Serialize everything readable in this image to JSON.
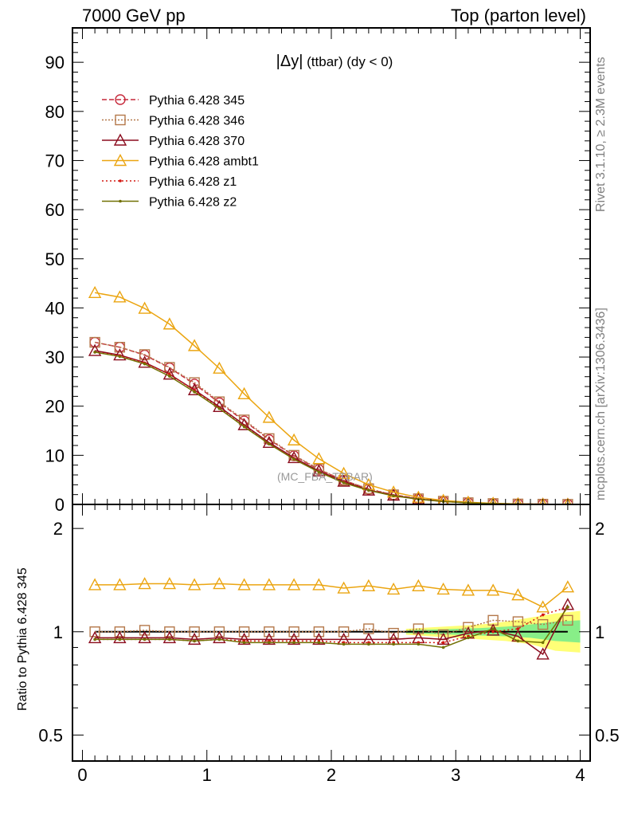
{
  "header": {
    "left": "7000 GeV pp",
    "right": "Top (parton level)"
  },
  "side_labels": {
    "rivet": "Rivet 3.1.10, ≥ 2.3M events",
    "mcplots": "mcplots.cern.ch [arXiv:1306.3436]"
  },
  "title": {
    "main": "|Δy|",
    "sub": " (ttbar) (dy < 0)"
  },
  "watermark": "(MC_FBA_TTBAR)",
  "chart_data": {
    "type": "line",
    "x": [
      0.1,
      0.3,
      0.5,
      0.7,
      0.9,
      1.1,
      1.3,
      1.5,
      1.7,
      1.9,
      2.1,
      2.3,
      2.5,
      2.7,
      2.9,
      3.1,
      3.3,
      3.5,
      3.7,
      3.9
    ],
    "xlim": [
      -0.08,
      4.08
    ],
    "xticks": [
      "0",
      "1",
      "2",
      "3",
      "4"
    ],
    "main_panel": {
      "ylim": [
        0,
        97
      ],
      "yticks": [
        "0",
        "10",
        "20",
        "30",
        "40",
        "50",
        "60",
        "70",
        "80",
        "90"
      ],
      "series": [
        {
          "name": "Pythia 6.428 345",
          "color": "#c6283a",
          "dash": "6,3",
          "marker": "circle",
          "values": [
            33.0,
            32.0,
            30.4,
            27.8,
            24.5,
            20.7,
            17.0,
            13.2,
            9.9,
            7.1,
            4.9,
            3.1,
            1.95,
            1.15,
            0.65,
            0.35,
            0.18,
            0.09,
            0.05,
            0.02
          ]
        },
        {
          "name": "Pythia 6.428 346",
          "color": "#b4784a",
          "dash": "2,2",
          "marker": "square",
          "values": [
            33.0,
            32.0,
            30.5,
            27.9,
            24.8,
            20.9,
            17.2,
            13.4,
            10.0,
            7.2,
            4.9,
            3.2,
            1.95,
            1.15,
            0.65,
            0.35,
            0.18,
            0.09,
            0.05,
            0.02
          ]
        },
        {
          "name": "Pythia 6.428 370",
          "color": "#8b0c1e",
          "dash": "",
          "marker": "triangle",
          "values": [
            31.3,
            30.4,
            28.9,
            26.5,
            23.3,
            19.9,
            16.2,
            12.6,
            9.5,
            6.8,
            4.7,
            2.9,
            1.85,
            1.1,
            0.62,
            0.34,
            0.17,
            0.09,
            0.04,
            0.02
          ]
        },
        {
          "name": "Pythia 6.428 ambt1",
          "color": "#eba511",
          "dash": "",
          "marker": "triangle",
          "values": [
            43.1,
            42.2,
            39.9,
            36.7,
            32.3,
            27.7,
            22.5,
            17.7,
            13.1,
            9.3,
            6.3,
            4.0,
            2.5,
            1.45,
            0.82,
            0.44,
            0.23,
            0.11,
            0.05,
            0.02
          ]
        },
        {
          "name": "Pythia 6.428 z1",
          "color": "#d41811",
          "dash": "2,3",
          "marker": "dot",
          "values": [
            31.0,
            30.3,
            28.8,
            26.5,
            23.2,
            19.6,
            15.9,
            12.4,
            9.3,
            6.6,
            4.5,
            2.9,
            1.8,
            1.05,
            0.6,
            0.33,
            0.17,
            0.09,
            0.05,
            0.02
          ]
        },
        {
          "name": "Pythia 6.428 z2",
          "color": "#717003",
          "dash": "",
          "marker": "dot",
          "values": [
            31.0,
            30.1,
            28.6,
            26.1,
            22.9,
            19.5,
            15.8,
            12.3,
            9.2,
            6.6,
            4.4,
            2.85,
            1.75,
            1.05,
            0.58,
            0.33,
            0.17,
            0.08,
            0.04,
            0.02
          ]
        }
      ]
    },
    "ratio_panel": {
      "ylabel": "Ratio to Pythia 6.428 345",
      "ylim_log": [
        0.42,
        2.35
      ],
      "yticks": [
        "0.5",
        "1",
        "2"
      ],
      "band_yellow": {
        "x": [
          2.6,
          2.8,
          3.0,
          3.2,
          3.4,
          3.6,
          3.8,
          4.0
        ],
        "lo": [
          0.98,
          0.97,
          0.96,
          0.95,
          0.94,
          0.92,
          0.88,
          0.87
        ],
        "hi": [
          1.02,
          1.03,
          1.04,
          1.05,
          1.07,
          1.1,
          1.13,
          1.15
        ]
      },
      "band_green": {
        "x": [
          2.6,
          2.8,
          3.0,
          3.2,
          3.4,
          3.6,
          3.8,
          4.0
        ],
        "lo": [
          0.99,
          0.985,
          0.98,
          0.975,
          0.97,
          0.96,
          0.94,
          0.93
        ],
        "hi": [
          1.01,
          1.015,
          1.02,
          1.025,
          1.035,
          1.05,
          1.07,
          1.08
        ]
      },
      "series": [
        {
          "name": "Pythia 6.428 345",
          "values": [
            1,
            1,
            1,
            1,
            1,
            1,
            1,
            1,
            1,
            1,
            1,
            1,
            1,
            1,
            1,
            1,
            1,
            1,
            1,
            1
          ]
        },
        {
          "name": "Pythia 6.428 346",
          "values": [
            1.0,
            1.0,
            1.01,
            1.0,
            1.0,
            1.0,
            1.0,
            1.0,
            1.0,
            1.0,
            1.0,
            1.02,
            0.99,
            1.02,
            0.98,
            1.03,
            1.08,
            1.07,
            1.05,
            1.08
          ]
        },
        {
          "name": "Pythia 6.428 370",
          "values": [
            0.96,
            0.96,
            0.96,
            0.96,
            0.95,
            0.96,
            0.95,
            0.95,
            0.95,
            0.95,
            0.95,
            0.95,
            0.95,
            0.96,
            0.95,
            0.99,
            1.01,
            0.97,
            0.86,
            1.2
          ]
        },
        {
          "name": "Pythia 6.428 ambt1",
          "values": [
            1.37,
            1.37,
            1.38,
            1.38,
            1.37,
            1.38,
            1.37,
            1.37,
            1.37,
            1.37,
            1.34,
            1.36,
            1.33,
            1.36,
            1.33,
            1.32,
            1.32,
            1.28,
            1.18,
            1.35
          ]
        },
        {
          "name": "Pythia 6.428 z1",
          "values": [
            0.95,
            0.95,
            0.95,
            0.95,
            0.94,
            0.95,
            0.94,
            0.94,
            0.94,
            0.94,
            0.93,
            0.93,
            0.93,
            0.93,
            0.93,
            0.97,
            1.0,
            1.02,
            1.12,
            1.18
          ]
        },
        {
          "name": "Pythia 6.428 z2",
          "values": [
            0.95,
            0.95,
            0.95,
            0.95,
            0.94,
            0.95,
            0.93,
            0.93,
            0.93,
            0.93,
            0.92,
            0.92,
            0.92,
            0.92,
            0.9,
            0.96,
            1.02,
            0.94,
            0.93,
            1.18
          ]
        }
      ]
    }
  }
}
